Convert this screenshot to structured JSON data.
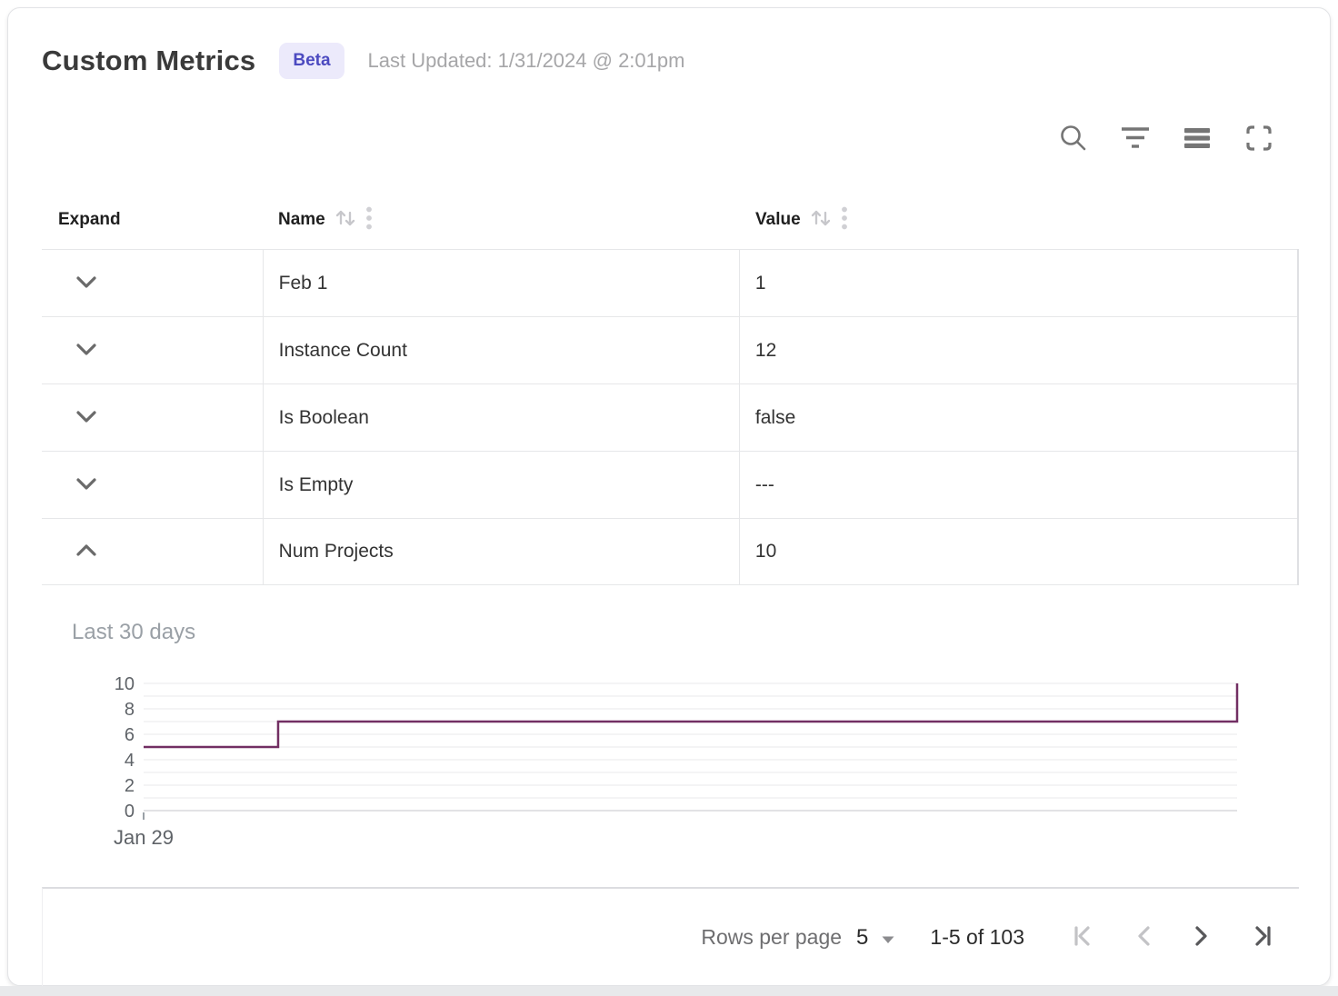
{
  "header": {
    "title": "Custom Metrics",
    "beta_label": "Beta",
    "last_updated": "Last Updated: 1/31/2024 @ 2:01pm"
  },
  "toolbar": {
    "icons": [
      "search-icon",
      "filter-icon",
      "density-icon",
      "fullscreen-icon"
    ]
  },
  "table": {
    "columns": [
      {
        "label": "Expand",
        "sortable": false
      },
      {
        "label": "Name",
        "sortable": true
      },
      {
        "label": "Value",
        "sortable": true
      }
    ],
    "rows": [
      {
        "name": "Feb 1",
        "value": "1",
        "expanded": false
      },
      {
        "name": "Instance Count",
        "value": "12",
        "expanded": false
      },
      {
        "name": "Is Boolean",
        "value": "false",
        "expanded": false
      },
      {
        "name": "Is Empty",
        "value": "---",
        "expanded": false
      },
      {
        "name": "Num Projects",
        "value": "10",
        "expanded": true
      }
    ]
  },
  "chart_data": {
    "type": "line",
    "title": "Last 30 days",
    "series_name": "Num Projects",
    "x_tick_labels": [
      "Jan 29"
    ],
    "y_ticks": [
      0,
      2,
      4,
      6,
      8,
      10
    ],
    "y_minor_step": 1,
    "ylim": [
      0,
      10
    ],
    "grid": true,
    "line_color": "#722f63",
    "step_points": [
      [
        0,
        5
      ],
      [
        0.123,
        5
      ],
      [
        0.123,
        7
      ],
      [
        1,
        7
      ],
      [
        1,
        10
      ]
    ]
  },
  "pagination": {
    "rows_per_page_label": "Rows per page",
    "rows_per_page_value": "5",
    "range_label": "1-5 of 103",
    "controls": [
      {
        "name": "first-page-button",
        "enabled": false
      },
      {
        "name": "prev-page-button",
        "enabled": false
      },
      {
        "name": "next-page-button",
        "enabled": true
      },
      {
        "name": "last-page-button",
        "enabled": true
      }
    ]
  }
}
